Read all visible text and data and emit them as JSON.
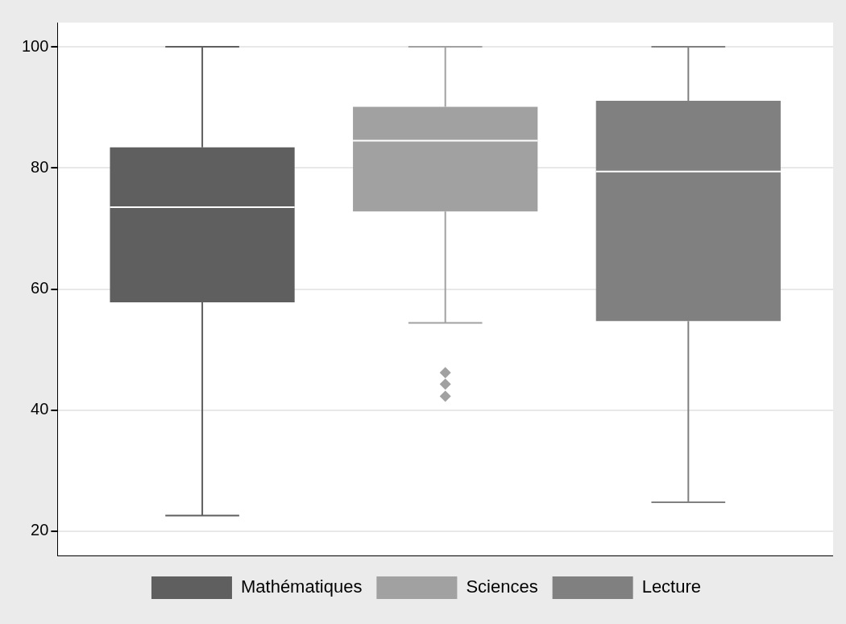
{
  "chart_data": {
    "type": "box",
    "categories": [
      null
    ],
    "series": [
      {
        "name": "Mathématiques",
        "color": "#5f5f5f",
        "boxes": [
          {
            "low": 22.6,
            "q1": 57.8,
            "median": 73.5,
            "q3": 83.4,
            "high": 100
          }
        ]
      },
      {
        "name": "Sciences",
        "color": "#a1a1a1",
        "boxes": [
          {
            "low": 54.4,
            "q1": 72.8,
            "median": 84.5,
            "q3": 90.1,
            "high": 100,
            "outliers": [
              42.3,
              44.3,
              46.2
            ]
          }
        ]
      },
      {
        "name": "Lecture",
        "color": "#808080",
        "boxes": [
          {
            "low": 24.8,
            "q1": 54.7,
            "median": 79.4,
            "q3": 91.1,
            "high": 100
          }
        ]
      }
    ],
    "ylim": [
      16,
      104
    ],
    "yticks": [
      20,
      40,
      60,
      80,
      100
    ],
    "grid": "y",
    "legend": "bottom",
    "tick_labels": "y"
  }
}
